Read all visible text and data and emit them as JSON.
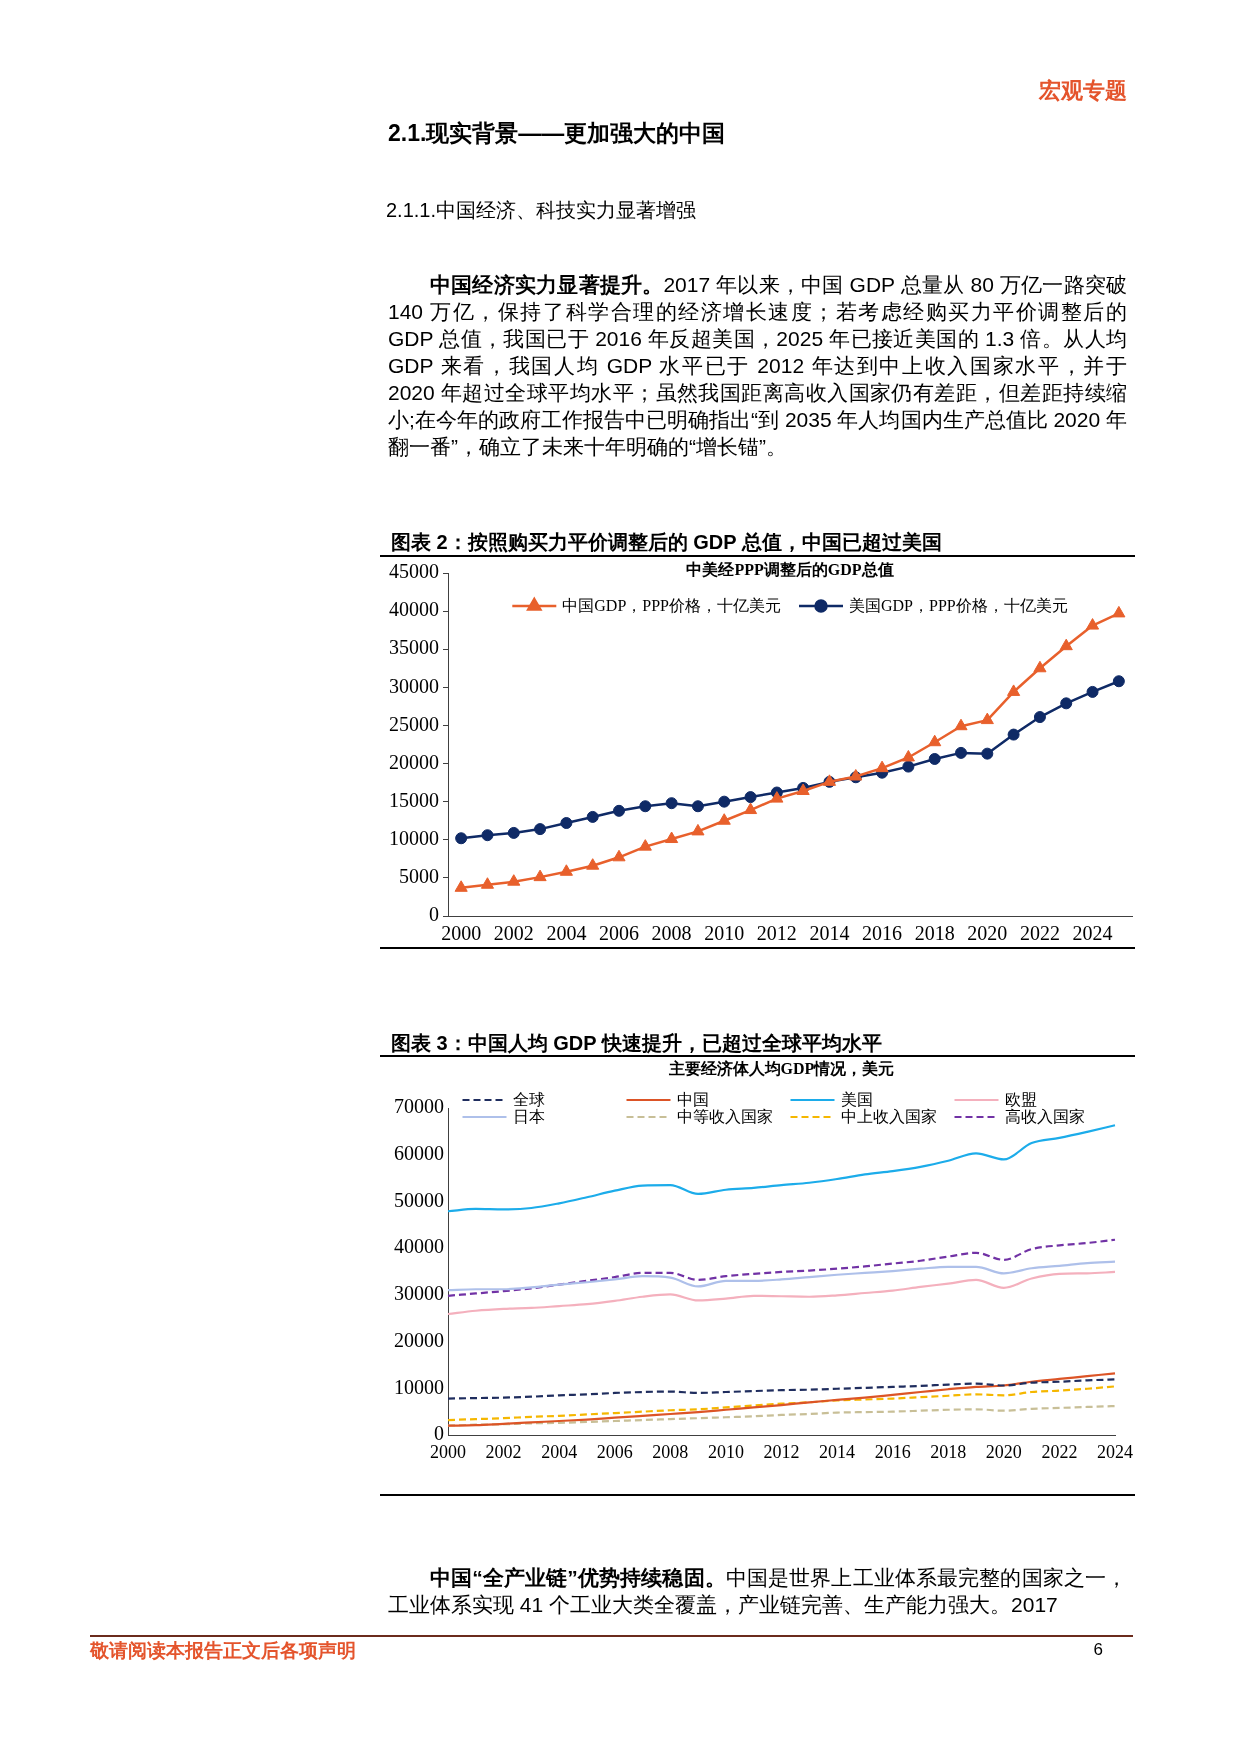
{
  "chart_data": [
    {
      "type": "other",
      "title": "2.1.现实背景——更加强大的中国",
      "subtitle": "2.1.1.中国经济、科技实力显著增强",
      "annotations": [
        "宏观专题",
        "中国经济实力显著提升。2017 年以来，中国 GDP 总量从 80 万亿一路突破 140 万亿，保持了科学合理的经济增长速度；若考虑经购买力平价调整后的 GDP 总值，我国已于 2016 年反超美国，2025 年已接近美国的 1.3 倍。从人均 GDP 来看，我国人均 GDP 水平已于 2012 年达到中上收入国家水平，并于 2020 年超过全球平均水平；虽然我国距离高收入国家仍有差距，但差距持续缩小;在今年的政府工作报告中已明确指出“到 2035 年人均国内生产总值比 2020 年翻一番”，确立了未来十年明确的“增长锚”。"
      ]
    },
    {
      "type": "line",
      "title": "图表 2：按照购买力平价调整后的 GDP 总值，中国已超过美国",
      "subtitle": "中美经PPP调整后的GDP总值",
      "categories": [
        "2000",
        null,
        "2002",
        null,
        "2004",
        null,
        "2006",
        null,
        "2008",
        null,
        "2010",
        null,
        "2012",
        null,
        "2014",
        null,
        "2016",
        null,
        "2018",
        null,
        "2020",
        null,
        "2022",
        null,
        "2024",
        null
      ],
      "series": [
        {
          "name": "中国GDP，PPP价格，十亿美元",
          "color": "#e8602c",
          "marker": "triangle",
          "values": [
            3700,
            4100,
            4500,
            5100,
            5800,
            6600,
            7700,
            9100,
            10100,
            11100,
            12500,
            13900,
            15400,
            16400,
            17600,
            18300,
            19400,
            20800,
            22800,
            24900,
            25700,
            29400,
            32500,
            35400,
            38100,
            39700
          ]
        },
        {
          "name": "美国GDP，PPP价格，十亿美元",
          "color": "#0f2a66",
          "marker": "circle",
          "values": [
            10200,
            10600,
            10900,
            11400,
            12200,
            13000,
            13800,
            14400,
            14800,
            14400,
            15000,
            15600,
            16200,
            16800,
            17600,
            18200,
            18800,
            19600,
            20600,
            21400,
            21300,
            23800,
            26100,
            27900,
            29400,
            30800
          ]
        }
      ],
      "ylim": [
        0,
        45000
      ],
      "yticks": [
        0,
        5000,
        10000,
        15000,
        20000,
        25000,
        30000,
        35000,
        40000,
        45000
      ],
      "legend": "top"
    },
    {
      "type": "line",
      "title": "图表 3：中国人均 GDP 快速提升，已超过全球平均水平",
      "subtitle": "主要经济体人均GDP情况，美元",
      "categories": [
        "2000",
        null,
        "2002",
        null,
        "2004",
        null,
        "2006",
        null,
        "2008",
        null,
        "2010",
        null,
        "2012",
        null,
        "2014",
        null,
        "2016",
        null,
        "2018",
        null,
        "2020",
        null,
        "2022",
        null,
        "2024"
      ],
      "series": [
        {
          "name": "全球",
          "color": "#1f2d5e",
          "line_style": "dashed",
          "values": [
            7800,
            7900,
            8000,
            8200,
            8500,
            8700,
            9000,
            9200,
            9300,
            9000,
            9200,
            9400,
            9600,
            9700,
            9900,
            10100,
            10300,
            10500,
            10800,
            11000,
            10600,
            11200,
            11400,
            11700,
            11900
          ]
        },
        {
          "name": "中国",
          "color": "#dc5426",
          "line_style": "solid",
          "values": [
            2000,
            2100,
            2400,
            2700,
            3000,
            3300,
            3700,
            4100,
            4500,
            4900,
            5400,
            5900,
            6400,
            7000,
            7500,
            8000,
            8600,
            9200,
            9800,
            10300,
            10600,
            11400,
            12000,
            12600,
            13200
          ]
        },
        {
          "name": "美国",
          "color": "#1cacea",
          "line_style": "solid",
          "values": [
            47900,
            48400,
            48300,
            48600,
            49600,
            50900,
            52300,
            53400,
            53500,
            51600,
            52500,
            52900,
            53500,
            54000,
            54800,
            55800,
            56500,
            57400,
            58700,
            60300,
            59000,
            62500,
            63600,
            64900,
            66300
          ]
        },
        {
          "name": "欧盟",
          "color": "#f4b0bd",
          "line_style": "solid",
          "values": [
            25900,
            26600,
            27000,
            27200,
            27600,
            28000,
            28700,
            29600,
            30100,
            28800,
            29200,
            29800,
            29700,
            29600,
            29900,
            30400,
            30900,
            31700,
            32400,
            33200,
            31500,
            33500,
            34500,
            34600,
            34900
          ]
        },
        {
          "name": "日本",
          "color": "#aec0ea",
          "line_style": "solid",
          "values": [
            31000,
            31200,
            31200,
            31600,
            32200,
            32700,
            33300,
            34000,
            33700,
            31800,
            33000,
            33000,
            33300,
            33800,
            34300,
            34700,
            35100,
            35600,
            36000,
            36000,
            34600,
            35700,
            36200,
            36800,
            37100
          ]
        },
        {
          "name": "中等收入国家",
          "color": "#c8bf97",
          "line_style": "dashed",
          "values": [
            2000,
            2200,
            2300,
            2500,
            2600,
            2800,
            3000,
            3200,
            3400,
            3600,
            3800,
            4000,
            4300,
            4500,
            4800,
            4900,
            5000,
            5200,
            5400,
            5500,
            5200,
            5600,
            5800,
            6000,
            6200
          ]
        },
        {
          "name": "中上收入国家",
          "color": "#f5b700",
          "line_style": "dashed",
          "values": [
            3200,
            3400,
            3600,
            3900,
            4100,
            4400,
            4700,
            5000,
            5300,
            5500,
            5900,
            6300,
            6700,
            7000,
            7400,
            7600,
            7800,
            8100,
            8400,
            8700,
            8500,
            9200,
            9500,
            9900,
            10400
          ]
        },
        {
          "name": "高收入国家",
          "color": "#7132a5",
          "line_style": "dashed",
          "values": [
            29800,
            30300,
            30800,
            31400,
            32200,
            33000,
            33800,
            34700,
            34700,
            33200,
            34000,
            34500,
            34900,
            35200,
            35600,
            36100,
            36700,
            37300,
            38200,
            39000,
            37500,
            39800,
            40600,
            41100,
            41800
          ]
        }
      ],
      "ylim": [
        0,
        70000
      ],
      "yticks": [
        0,
        10000,
        20000,
        30000,
        40000,
        50000,
        60000,
        70000
      ],
      "legend": "top"
    },
    {
      "type": "other",
      "annotations": [
        "中国“全产业链”优势持续稳固。中国是世界上工业体系最完整的国家之一，工业体系实现 41 个工业大类全覆盖，产业链完善、生产能力强大。2017",
        "敬请阅读本报告正文后各项声明",
        "6"
      ]
    }
  ]
}
